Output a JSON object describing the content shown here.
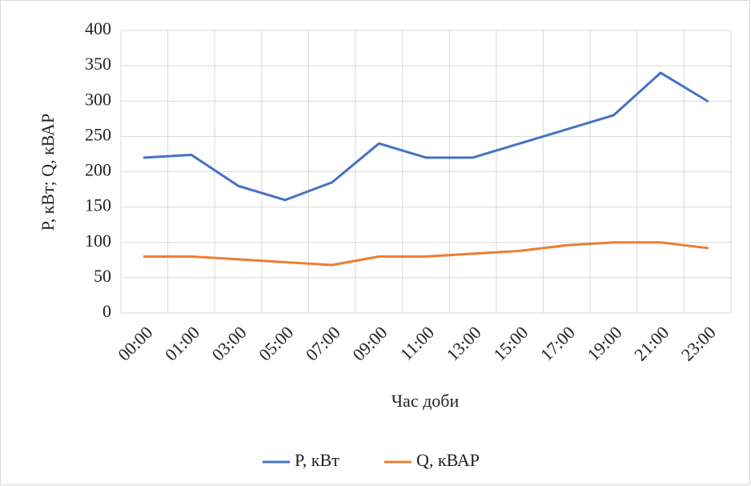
{
  "chart_data": {
    "type": "line",
    "x_label": "Час доби",
    "y_label": "P, кВт; Q, кВАР",
    "categories": [
      "00:00",
      "01:00",
      "03:00",
      "05:00",
      "07:00",
      "09:00",
      "11:00",
      "13:00",
      "15:00",
      "17:00",
      "19:00",
      "21:00",
      "23:00"
    ],
    "series": [
      {
        "name": "P, кВт",
        "color": "#4472c4",
        "values": [
          220,
          224,
          180,
          160,
          185,
          240,
          220,
          220,
          240,
          260,
          280,
          340,
          300
        ]
      },
      {
        "name": "Q, кВАР",
        "color": "#ed7d31",
        "values": [
          80,
          80,
          76,
          72,
          68,
          80,
          80,
          84,
          88,
          96,
          100,
          100,
          92
        ]
      }
    ],
    "ylim": [
      0,
      400
    ],
    "yticks": [
      0,
      50,
      100,
      150,
      200,
      250,
      300,
      350,
      400
    ],
    "grid": true,
    "legend": "bottom"
  }
}
